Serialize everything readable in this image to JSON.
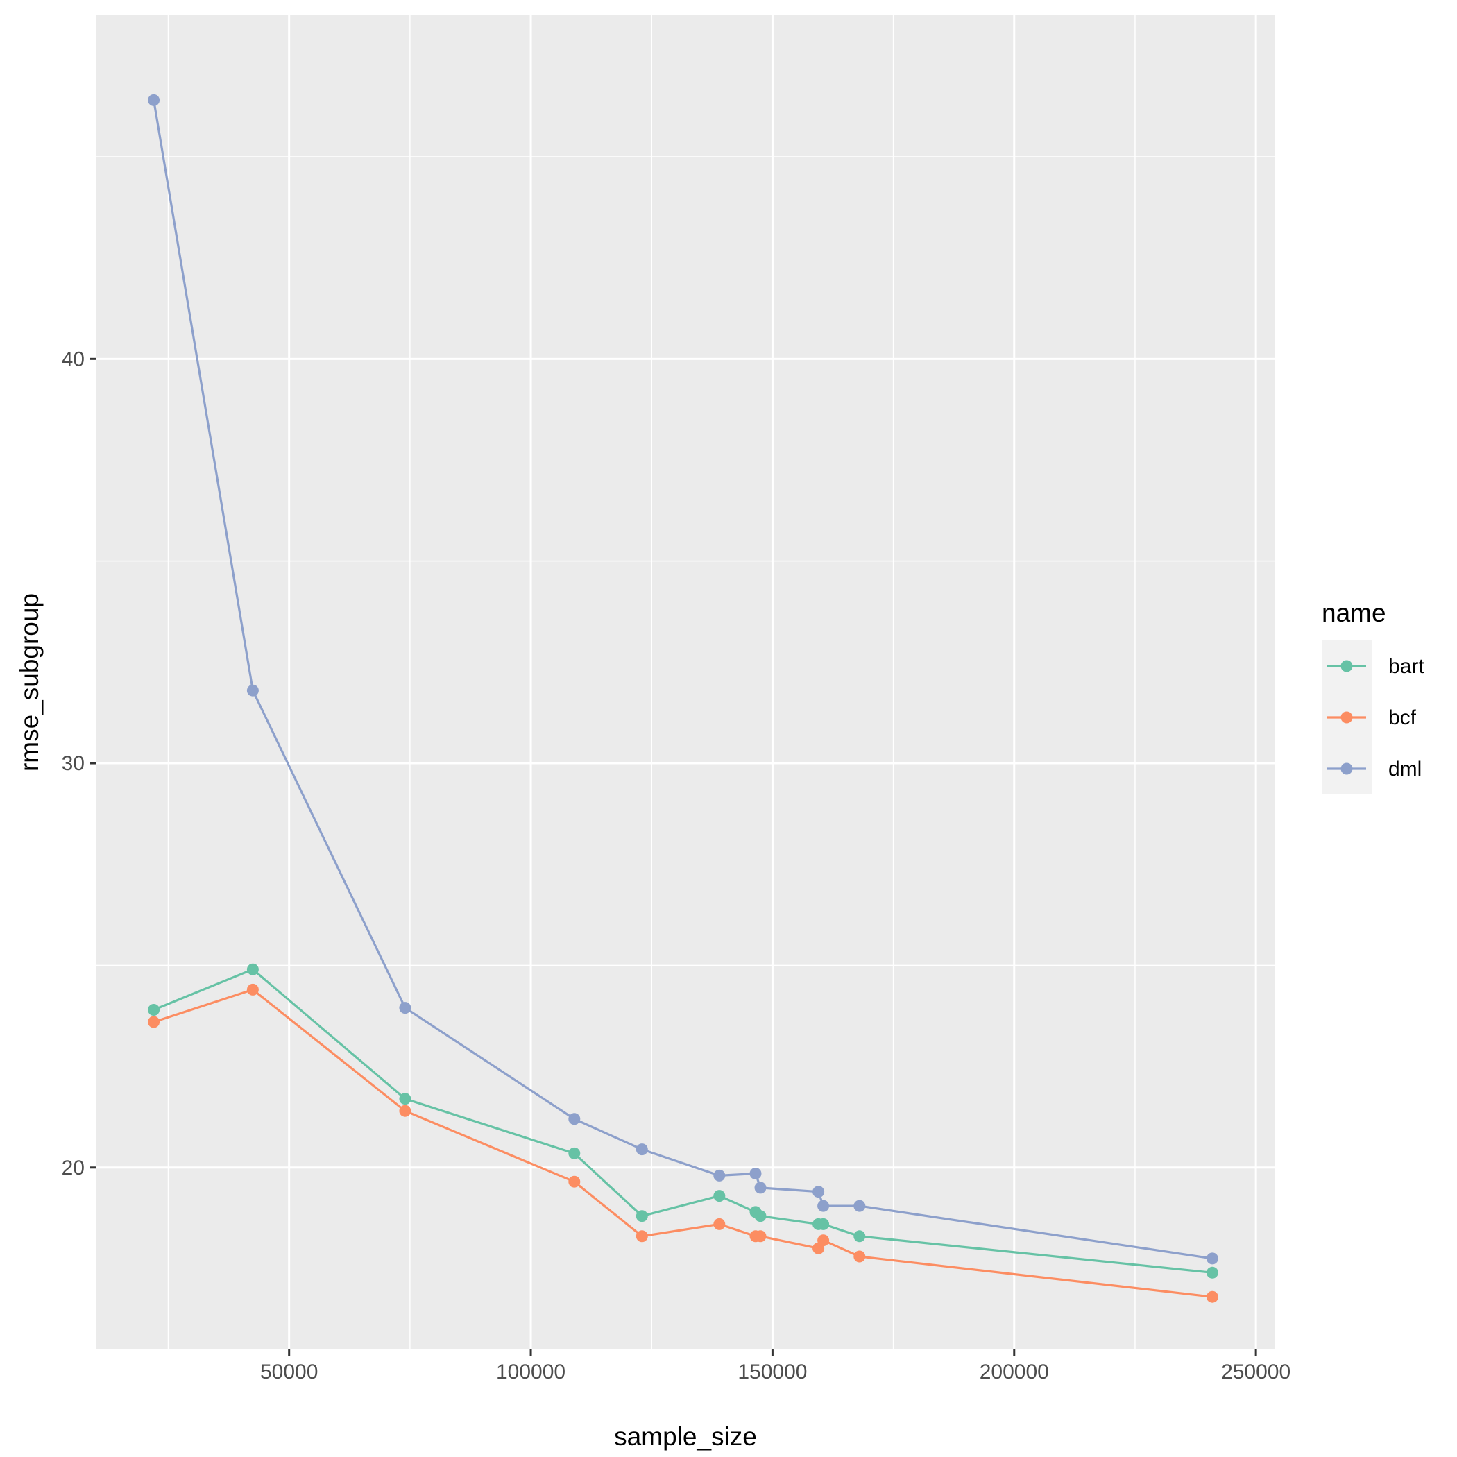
{
  "chart_data": {
    "type": "line",
    "xlabel": "sample_size",
    "ylabel": "rmse_subgroup",
    "xlim": [
      10000,
      254000
    ],
    "ylim": [
      15.5,
      48.5
    ],
    "x_ticks": [
      50000,
      100000,
      150000,
      200000,
      250000
    ],
    "x_tick_labels": [
      "50000",
      "100000",
      "150000",
      "200000",
      "250000"
    ],
    "y_ticks": [
      20,
      30,
      40
    ],
    "y_tick_labels": [
      "20",
      "30",
      "40"
    ],
    "grid": true,
    "legend": {
      "title": "name",
      "position": "right"
    },
    "series": [
      {
        "name": "bart",
        "color": "#66c2a5",
        "points": [
          [
            22000,
            23.9
          ],
          [
            42500,
            24.9
          ],
          [
            74000,
            21.7
          ],
          [
            109000,
            20.35
          ],
          [
            123000,
            18.8
          ],
          [
            139000,
            19.3
          ],
          [
            146500,
            18.9
          ],
          [
            147500,
            18.8
          ],
          [
            159500,
            18.6
          ],
          [
            160500,
            18.6
          ],
          [
            168000,
            18.3
          ],
          [
            241000,
            17.4
          ]
        ]
      },
      {
        "name": "bcf",
        "color": "#fc8d62",
        "points": [
          [
            22000,
            23.6
          ],
          [
            42500,
            24.4
          ],
          [
            74000,
            21.4
          ],
          [
            109000,
            19.65
          ],
          [
            123000,
            18.3
          ],
          [
            139000,
            18.6
          ],
          [
            146500,
            18.3
          ],
          [
            147500,
            18.3
          ],
          [
            159500,
            18.0
          ],
          [
            160500,
            18.2
          ],
          [
            168000,
            17.8
          ],
          [
            241000,
            16.8
          ]
        ]
      },
      {
        "name": "dml",
        "color": "#8da0cb",
        "points": [
          [
            22000,
            46.4
          ],
          [
            42500,
            31.8
          ],
          [
            74000,
            23.95
          ],
          [
            109000,
            21.2
          ],
          [
            123000,
            20.45
          ],
          [
            139000,
            19.8
          ],
          [
            146500,
            19.85
          ],
          [
            147500,
            19.5
          ],
          [
            159500,
            19.4
          ],
          [
            160500,
            19.05
          ],
          [
            168000,
            19.05
          ],
          [
            241000,
            17.75
          ]
        ]
      }
    ]
  }
}
